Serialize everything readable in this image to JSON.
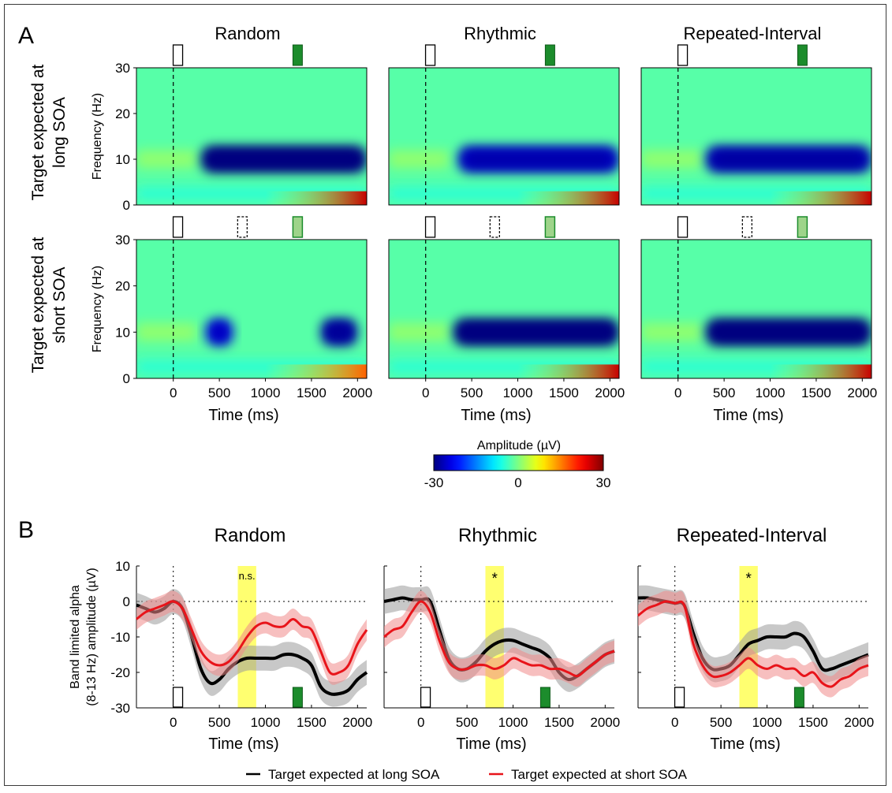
{
  "panel_labels": {
    "a": "A",
    "b": "B"
  },
  "conditions": [
    "Random",
    "Rhythmic",
    "Repeated-Interval"
  ],
  "row_labels": {
    "long": [
      "Target expected at",
      "long SOA"
    ],
    "short": [
      "Target expected at",
      "short SOA"
    ]
  },
  "colors": {
    "long": "#000000",
    "short": "#e8141a",
    "window": "#ffff40",
    "marker_green": "#1c8c2c",
    "marker_light_green": "#9ed48a"
  },
  "colorbar": {
    "label": "Amplitude (µV)",
    "ticks": [
      "-30",
      "0",
      "30"
    ],
    "colormap": "jet"
  },
  "legend": {
    "long": "Target expected at long SOA",
    "short": "Target expected at short SOA"
  },
  "icons": {
    "cue": "white-rectangle-marker",
    "expected_short": "dashed-rectangle-marker",
    "target": "green-rectangle-marker",
    "target_light": "light-green-rectangle-marker"
  },
  "chart_data": [
    {
      "type": "heatmap",
      "panel": "A",
      "title": "Random / Rhythmic / Repeated-Interval",
      "xlabel": "Time (ms)",
      "ylabel": "Frequency (Hz)",
      "xlim": [
        -400,
        2100
      ],
      "ylim": [
        0,
        30
      ],
      "xticks": [
        "0",
        "500",
        "1000",
        "1500",
        "2000"
      ],
      "yticks": [
        "0",
        "10",
        "20",
        "30"
      ],
      "clim": [
        -30,
        30
      ],
      "rows": [
        "Target expected at long SOA",
        "Target expected at short SOA"
      ],
      "markers_ms": {
        "cue": 50,
        "short_soa": 750,
        "long_soa": 1350
      },
      "blobs": [
        {
          "condition": "Random",
          "row": "long",
          "desc": "alpha suppression",
          "freq_hz": 10,
          "t_ms": [
            300,
            2100
          ],
          "amp": -30
        },
        {
          "condition": "Random",
          "row": "short",
          "desc": "alpha suppression",
          "freq_hz": 10,
          "t_ms": [
            350,
            650
          ],
          "amp": -25
        },
        {
          "condition": "Random",
          "row": "short",
          "desc": "alpha suppression",
          "freq_hz": 10,
          "t_ms": [
            1600,
            2000
          ],
          "amp": -28
        },
        {
          "condition": "Rhythmic",
          "row": "long",
          "desc": "alpha suppression",
          "freq_hz": 10,
          "t_ms": [
            350,
            2100
          ],
          "amp": -26
        },
        {
          "condition": "Rhythmic",
          "row": "short",
          "desc": "alpha suppression",
          "freq_hz": 10,
          "t_ms": [
            300,
            2100
          ],
          "amp": -30
        },
        {
          "condition": "Repeated-Interval",
          "row": "long",
          "desc": "alpha suppression",
          "freq_hz": 10,
          "t_ms": [
            300,
            2100
          ],
          "amp": -27
        },
        {
          "condition": "Repeated-Interval",
          "row": "short",
          "desc": "alpha suppression",
          "freq_hz": 10,
          "t_ms": [
            300,
            2100
          ],
          "amp": -30
        }
      ]
    },
    {
      "type": "line",
      "panel": "B",
      "ylabel": [
        "Band limited alpha",
        "(8-13 Hz) amplitude (µV)"
      ],
      "xlabel": "Time (ms)",
      "xlim": [
        -400,
        2100
      ],
      "ylim": [
        -30,
        10
      ],
      "xticks": [
        "0",
        "500",
        "1000",
        "1500",
        "2000"
      ],
      "yticks": [
        "10",
        "0",
        "-10",
        "-20",
        "-30"
      ],
      "window_ms": [
        700,
        900
      ],
      "annotations": [
        "n.s.",
        "*",
        "*"
      ],
      "markers_ms": {
        "cue": 50,
        "target": 1350
      },
      "x": [
        -400,
        -300,
        -200,
        -100,
        0,
        100,
        200,
        300,
        400,
        500,
        600,
        700,
        800,
        900,
        1000,
        1100,
        1200,
        1300,
        1400,
        1500,
        1600,
        1700,
        1800,
        1900,
        2000,
        2100
      ],
      "panels": [
        {
          "title": "Random",
          "series": [
            {
              "key": "long",
              "values": [
                -1,
                -2,
                -3,
                -2,
                0,
                -2,
                -10,
                -19,
                -23,
                -22,
                -19,
                -17,
                -16,
                -16,
                -16,
                -16,
                -15,
                -15,
                -16,
                -18,
                -24,
                -26,
                -26,
                -25,
                -22,
                -20
              ]
            },
            {
              "key": "short",
              "values": [
                -5,
                -3,
                -2,
                -1,
                0,
                -2,
                -8,
                -14,
                -17,
                -18,
                -17,
                -14,
                -10,
                -7,
                -6,
                -7,
                -7,
                -5,
                -7,
                -8,
                -14,
                -20,
                -20,
                -18,
                -12,
                -8
              ]
            }
          ]
        },
        {
          "title": "Rhythmic",
          "series": [
            {
              "key": "long",
              "values": [
                0,
                0.5,
                1,
                0.5,
                0.5,
                0,
                -8,
                -16,
                -19,
                -19,
                -17,
                -14,
                -12,
                -11,
                -11,
                -12,
                -13,
                -14,
                -16,
                -20,
                -22,
                -21,
                -19,
                -17,
                -15,
                -14
              ]
            },
            {
              "key": "short",
              "values": [
                -10,
                -8,
                -7,
                -3,
                0,
                -3,
                -11,
                -17,
                -19,
                -19,
                -18,
                -18,
                -19,
                -18,
                -16,
                -17,
                -18,
                -18,
                -19,
                -19,
                -20,
                -21,
                -19,
                -17,
                -15,
                -14
              ]
            }
          ]
        },
        {
          "title": "Repeated-Interval",
          "series": [
            {
              "key": "long",
              "values": [
                1,
                1,
                0.5,
                0,
                -0.5,
                -1,
                -9,
                -16,
                -19,
                -19,
                -18,
                -15,
                -12,
                -11,
                -10,
                -10,
                -10,
                -9,
                -10,
                -14,
                -19,
                -19,
                -18,
                -17,
                -16,
                -15
              ]
            },
            {
              "key": "short",
              "values": [
                -4,
                -2,
                -1,
                0,
                -0.5,
                -1,
                -12,
                -18,
                -21,
                -21,
                -20,
                -18,
                -16,
                -18,
                -19,
                -18,
                -19,
                -19,
                -21,
                -20,
                -23,
                -24,
                -22,
                -21,
                -19,
                -18
              ]
            }
          ]
        }
      ]
    }
  ]
}
